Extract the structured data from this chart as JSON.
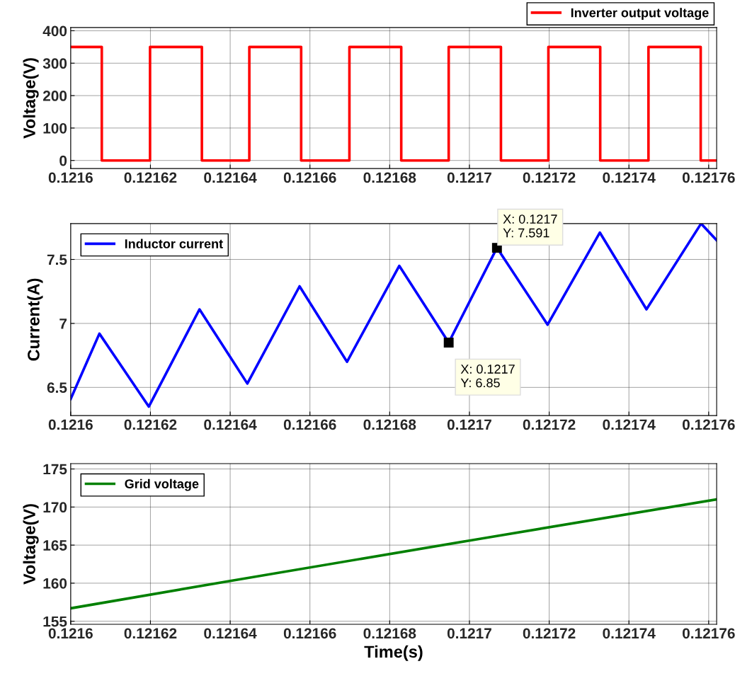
{
  "chart_data": [
    {
      "type": "line",
      "ylabel": "Voltage(V)",
      "xlim": [
        0.1216,
        0.121762
      ],
      "xticks": [
        0.1216,
        0.12162,
        0.12164,
        0.12166,
        0.12168,
        0.1217,
        0.12172,
        0.12174,
        0.12176
      ],
      "ylim": [
        -25,
        410
      ],
      "yticks": [
        0,
        100,
        200,
        300,
        400
      ],
      "grid": true,
      "legend": "top right",
      "line_style": "solid",
      "marker": "none",
      "series": [
        {
          "name": "Inverter output voltage",
          "color": "#ff0000",
          "x": [
            0.1216,
            0.1216078,
            0.1216078,
            0.1216199,
            0.1216199,
            0.1216329,
            0.1216329,
            0.1216448,
            0.1216448,
            0.1216578,
            0.1216578,
            0.1216699,
            0.1216699,
            0.1216829,
            0.1216829,
            0.1216948,
            0.1216948,
            0.1217079,
            0.1217079,
            0.1217198,
            0.1217198,
            0.1217328,
            0.1217328,
            0.1217449,
            0.1217449,
            0.121758,
            0.121758,
            0.121762
          ],
          "values": [
            350,
            350,
            0,
            0,
            350,
            350,
            0,
            0,
            350,
            350,
            0,
            0,
            350,
            350,
            0,
            0,
            350,
            350,
            0,
            0,
            350,
            350,
            0,
            0,
            350,
            350,
            0,
            0
          ]
        }
      ]
    },
    {
      "type": "line",
      "ylabel": "Current(A)",
      "xlim": [
        0.1216,
        0.121762
      ],
      "xticks": [
        0.1216,
        0.12162,
        0.12164,
        0.12166,
        0.12168,
        0.1217,
        0.12172,
        0.12174,
        0.12176
      ],
      "ylim": [
        6.28,
        7.78
      ],
      "yticks": [
        6.5,
        7,
        7.5
      ],
      "grid": true,
      "legend": "top left",
      "line_style": "solid",
      "marker": "none",
      "series": [
        {
          "name": "Inductor current",
          "color": "#0000ff",
          "x": [
            0.1216,
            0.1216072,
            0.1216196,
            0.1216323,
            0.1216443,
            0.1216574,
            0.1216693,
            0.1216824,
            0.1216948,
            0.1217069,
            0.1217196,
            0.1217327,
            0.1217444,
            0.1217581,
            0.121762
          ],
          "values": [
            6.41,
            6.92,
            6.35,
            7.11,
            6.53,
            7.29,
            6.7,
            7.45,
            6.85,
            7.591,
            6.99,
            7.71,
            7.11,
            7.78,
            7.65
          ]
        }
      ],
      "annotations": [
        {
          "text": "X: 0.1217\nY: 6.85",
          "x": 0.1216948,
          "y": 6.85
        },
        {
          "text": "X: 0.1217\nY: 7.591",
          "x": 0.1217069,
          "y": 7.591
        }
      ]
    },
    {
      "type": "line",
      "xlabel": "Time(s)",
      "ylabel": "Voltage(V)",
      "xlim": [
        0.1216,
        0.121762
      ],
      "xticks": [
        0.1216,
        0.12162,
        0.12164,
        0.12166,
        0.12168,
        0.1217,
        0.12172,
        0.12174,
        0.12176
      ],
      "ylim": [
        154.6,
        175.7
      ],
      "yticks": [
        155,
        160,
        165,
        170,
        175
      ],
      "grid": true,
      "legend": "top left",
      "line_style": "solid",
      "marker": "none",
      "series": [
        {
          "name": "Grid voltage",
          "color": "#008000",
          "x": [
            0.1216,
            0.12164,
            0.1217,
            0.121762
          ],
          "values": [
            156.7,
            160.3,
            165.6,
            171.0
          ]
        }
      ]
    }
  ]
}
